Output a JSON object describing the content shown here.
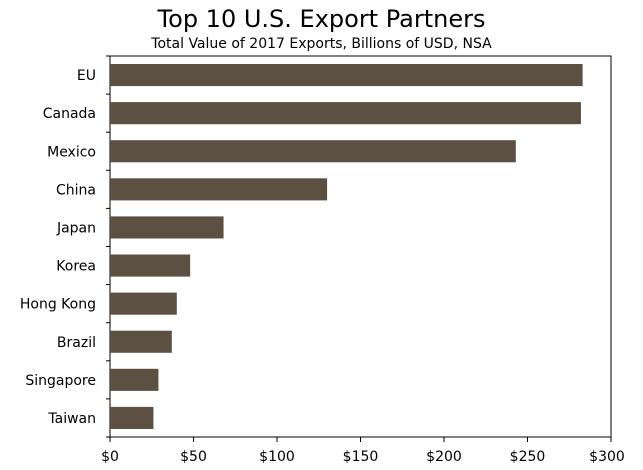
{
  "chart_data": {
    "type": "bar",
    "orientation": "horizontal",
    "title": "Top 10 U.S. Export Partners",
    "subtitle": "Total Value of 2017 Exports, Billions of USD, NSA",
    "categories": [
      "EU",
      "Canada",
      "Mexico",
      "China",
      "Japan",
      "Korea",
      "Hong Kong",
      "Brazil",
      "Singapore",
      "Taiwan"
    ],
    "values": [
      283,
      282,
      243,
      130,
      68,
      48,
      40,
      37,
      29,
      26
    ],
    "xlim": [
      0,
      300
    ],
    "xticks": [
      0,
      50,
      100,
      150,
      200,
      250,
      300
    ],
    "xtick_labels": [
      "$0",
      "$50",
      "$100",
      "$150",
      "$200",
      "$250",
      "$300"
    ],
    "xlabel": "",
    "ylabel": "",
    "bar_color": "#5c5043",
    "grid": false,
    "legend": "none"
  }
}
